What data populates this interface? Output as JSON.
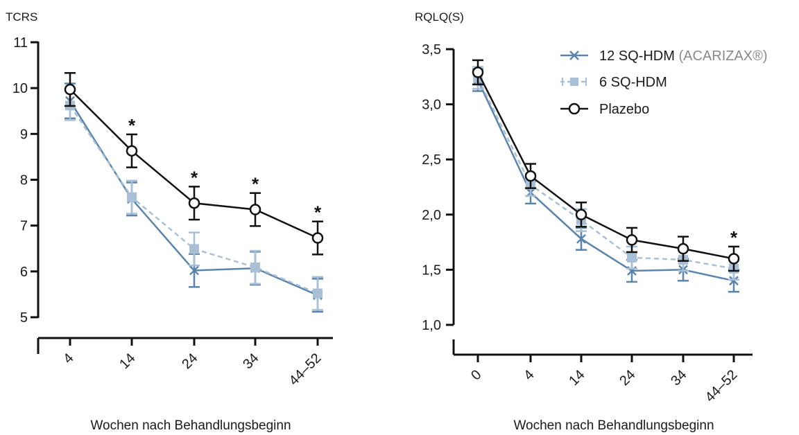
{
  "chart_data": [
    {
      "type": "line",
      "ylabel": "TCRS",
      "xlabel": "Wochen nach Behandlungsbeginn",
      "categories": [
        "4",
        "14",
        "24",
        "34",
        "44–52"
      ],
      "ylim": [
        5,
        11
      ],
      "yticks": [
        "5",
        "6",
        "7",
        "8",
        "9",
        "10",
        "11"
      ],
      "significance_marker": "*",
      "significant_at": [
        "14",
        "24",
        "34",
        "44–52"
      ],
      "series": [
        {
          "name": "12 SQ-HDM (ACARIZAX®)",
          "values": [
            9.72,
            7.58,
            6.02,
            6.07,
            5.48
          ],
          "err": [
            0.38,
            0.36,
            0.36,
            0.36,
            0.36
          ]
        },
        {
          "name": "6 SQ-HDM",
          "values": [
            9.62,
            7.62,
            6.49,
            6.09,
            5.52
          ],
          "err": [
            0.32,
            0.36,
            0.36,
            0.36,
            0.36
          ]
        },
        {
          "name": "Plazebo",
          "values": [
            9.97,
            8.63,
            7.49,
            7.35,
            6.73
          ],
          "err": [
            0.36,
            0.36,
            0.36,
            0.36,
            0.36
          ]
        }
      ]
    },
    {
      "type": "line",
      "ylabel": "RQLQ(S)",
      "xlabel": "Wochen nach Behandlungsbeginn",
      "categories": [
        "0",
        "4",
        "14",
        "24",
        "34",
        "44–52"
      ],
      "ylim": [
        1.0,
        3.5
      ],
      "yticks": [
        "1,0",
        "1,5",
        "2,0",
        "2,5",
        "3,0",
        "3,5"
      ],
      "significance_marker": "*",
      "significant_at": [
        "44–52"
      ],
      "series": [
        {
          "name": "12 SQ-HDM (ACARIZAX®)",
          "values": [
            3.22,
            2.2,
            1.78,
            1.49,
            1.5,
            1.4
          ],
          "err": [
            0.1,
            0.1,
            0.1,
            0.1,
            0.1,
            0.1
          ]
        },
        {
          "name": "6 SQ-HDM",
          "values": [
            3.24,
            2.27,
            1.95,
            1.61,
            1.59,
            1.51
          ],
          "err": [
            0.1,
            0.1,
            0.1,
            0.1,
            0.1,
            0.1
          ]
        },
        {
          "name": "Plazebo",
          "values": [
            3.29,
            2.35,
            2.0,
            1.77,
            1.69,
            1.6
          ],
          "err": [
            0.11,
            0.11,
            0.11,
            0.11,
            0.11,
            0.11
          ]
        }
      ]
    }
  ],
  "legend": {
    "placement": "top-right",
    "items": [
      {
        "label": "12 SQ-HDM",
        "label_suffix": " (ACARIZAX®)"
      },
      {
        "label": "6 SQ-HDM",
        "label_suffix": ""
      },
      {
        "label": "Plazebo",
        "label_suffix": ""
      }
    ]
  },
  "colors": {
    "sq12": "#5b84ad",
    "sq6": "#a9bfd6",
    "placebo": "#111111",
    "axis": "#111111",
    "text": "#1a1a1a",
    "suffix_text": "#888888"
  }
}
